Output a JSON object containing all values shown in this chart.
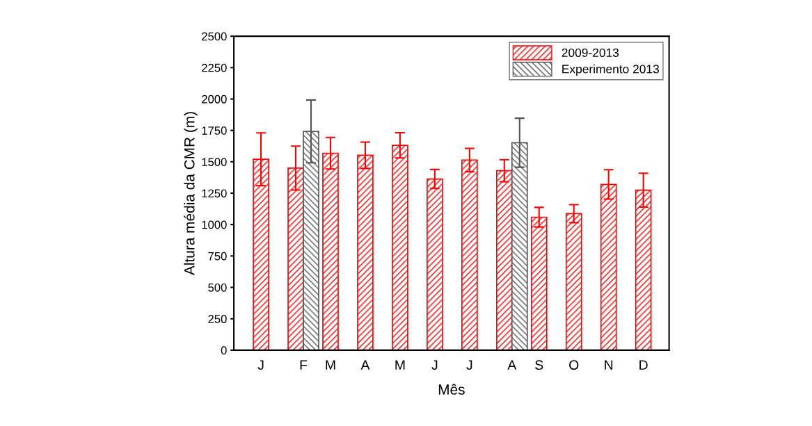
{
  "chart_data": {
    "type": "bar",
    "xlabel": "Mês",
    "ylabel": "Altura média da CMR (m)",
    "categories": [
      "J",
      "F",
      "M",
      "A",
      "M",
      "J",
      "J",
      "A",
      "S",
      "O",
      "N",
      "D"
    ],
    "series": [
      {
        "name": "2009-2013",
        "color": "#ff0000",
        "values": [
          1520,
          1450,
          1568,
          1552,
          1631,
          1363,
          1514,
          1429,
          1059,
          1087,
          1320,
          1274
        ],
        "errors": [
          210,
          175,
          126,
          105,
          100,
          76,
          93,
          88,
          78,
          72,
          117,
          135
        ]
      },
      {
        "name": "Experimento 2013",
        "color": "#555555",
        "values": [
          null,
          1742,
          null,
          null,
          null,
          null,
          null,
          1652,
          null,
          null,
          null,
          null
        ],
        "errors": [
          null,
          250,
          null,
          null,
          null,
          null,
          null,
          195,
          null,
          null,
          null,
          null
        ]
      }
    ],
    "ylim": [
      0,
      2500
    ],
    "yticks": [
      0,
      250,
      500,
      750,
      1000,
      1250,
      1500,
      1750,
      2000,
      2250,
      2500
    ],
    "legend": "top right",
    "grid": false
  }
}
